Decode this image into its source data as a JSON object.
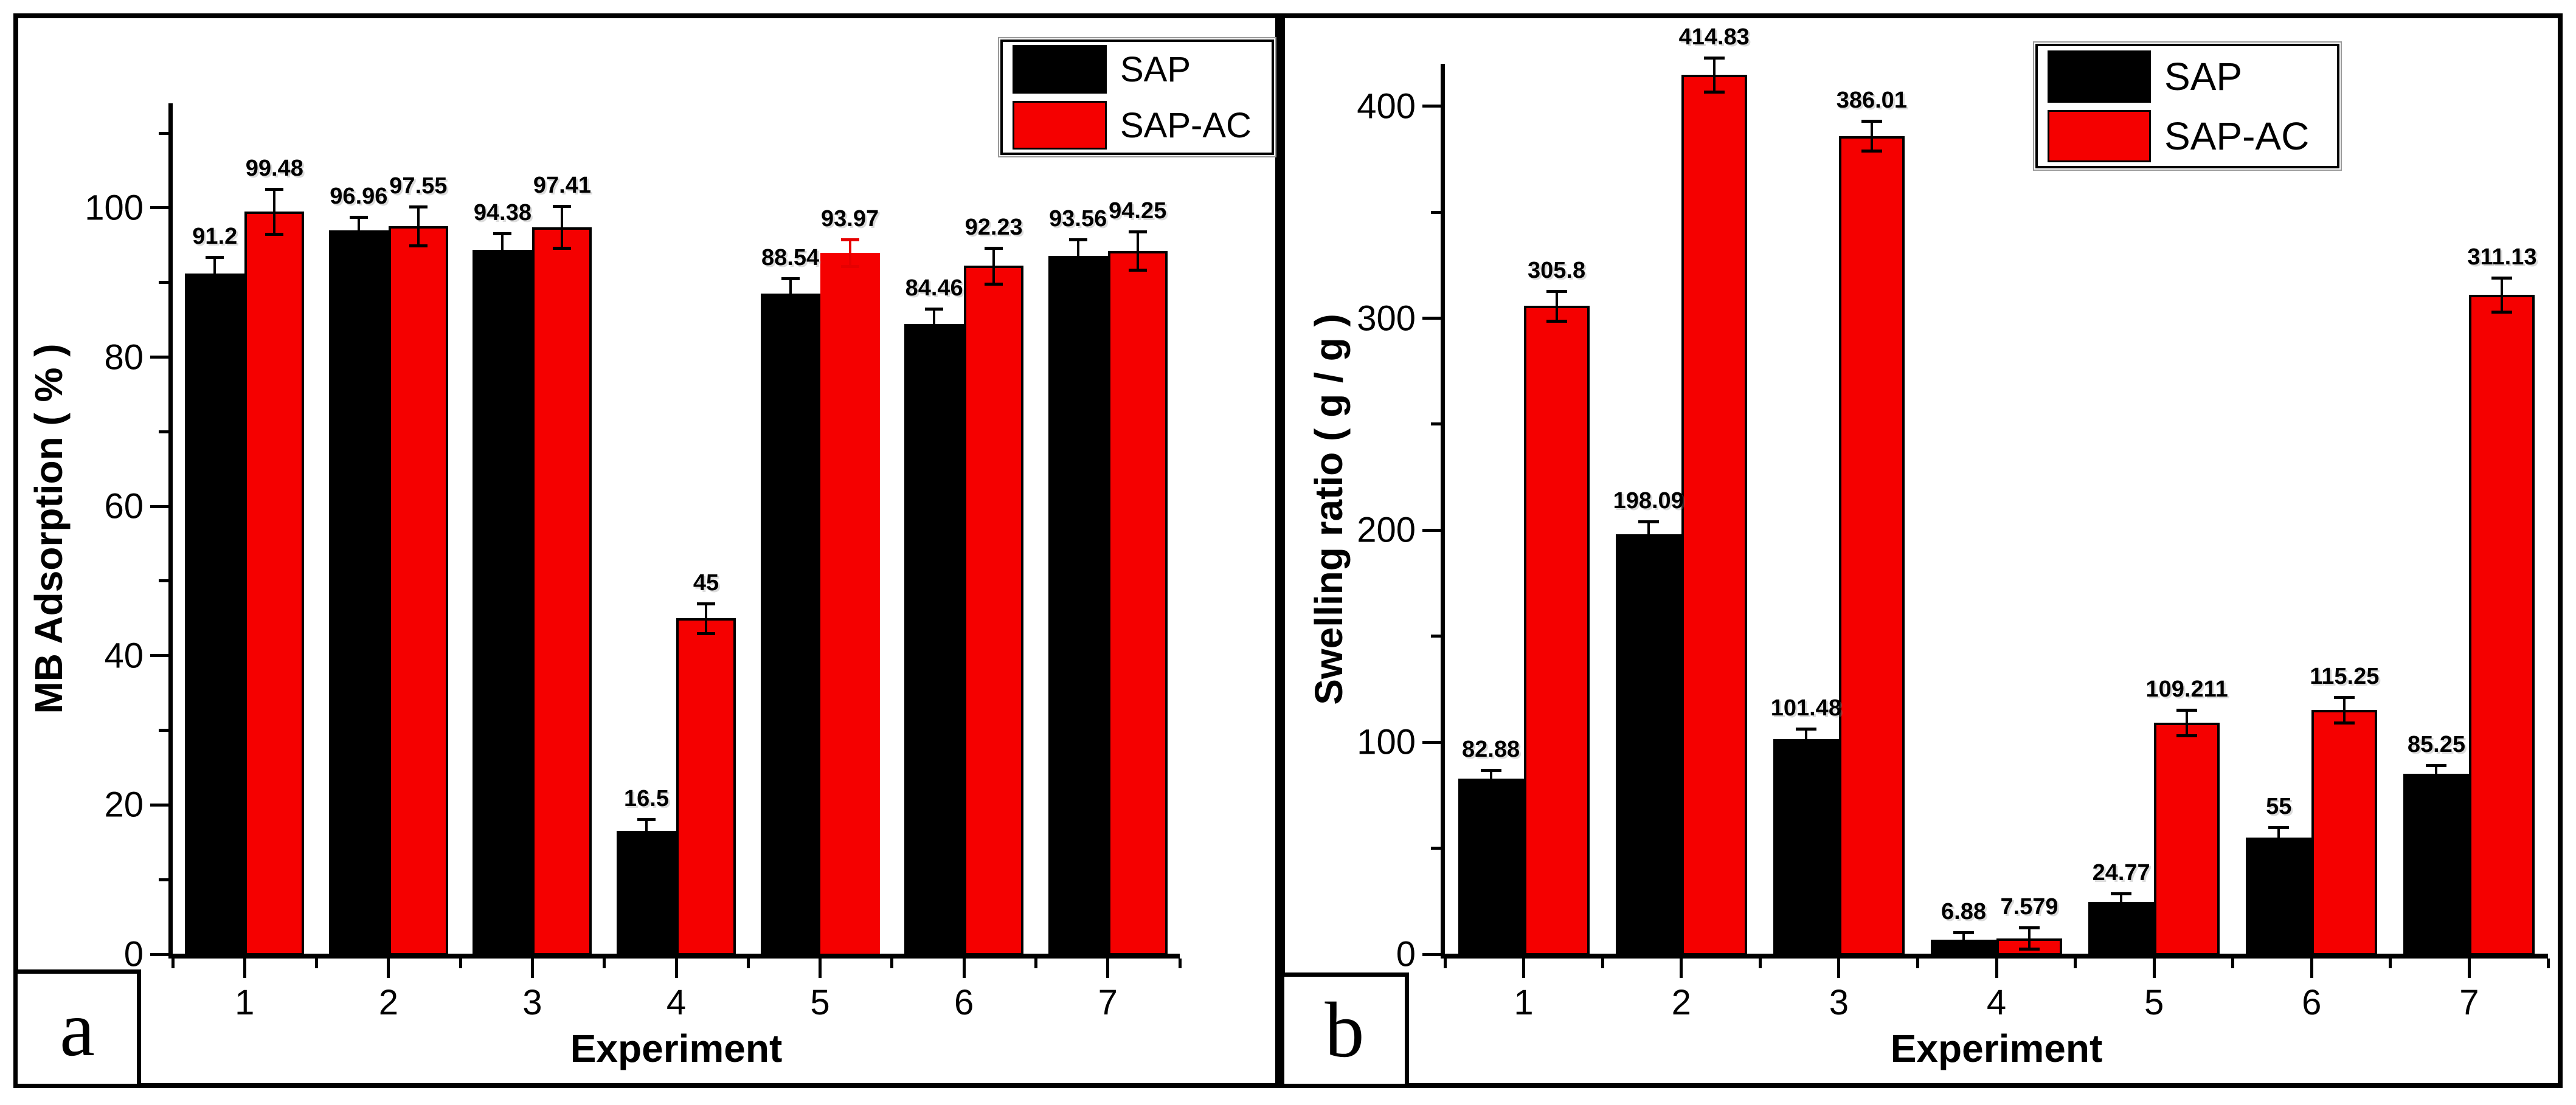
{
  "figure": {
    "background": "#ffffff",
    "border_color": "#000000",
    "series_colors": {
      "SAP": "#000000",
      "SAP-AC": "#f50000"
    }
  },
  "chart_data": [
    {
      "id": "a",
      "type": "bar",
      "panel_label": "a",
      "title": "",
      "xlabel": "Experiment",
      "ylabel": "MB Adsorption ( % )",
      "categories": [
        "1",
        "2",
        "3",
        "4",
        "5",
        "6",
        "7"
      ],
      "ylim": [
        0,
        114
      ],
      "yticks": [
        0,
        20,
        40,
        60,
        80,
        100
      ],
      "minor_tick_step": 10,
      "grid": false,
      "legend": {
        "position": "top-right",
        "entries": [
          "SAP",
          "SAP-AC"
        ]
      },
      "series": [
        {
          "name": "SAP",
          "color": "#000000",
          "outline": "#000000",
          "values": [
            91.2,
            96.96,
            94.38,
            16.5,
            88.54,
            84.46,
            93.56
          ],
          "value_labels": [
            "91.2",
            "96.96",
            "94.38",
            "16.5",
            "88.54",
            "84.46",
            "93.56"
          ],
          "errors": [
            2.2,
            1.8,
            2.2,
            1.6,
            2.0,
            2.0,
            2.2
          ],
          "error_colors": [
            null,
            null,
            null,
            null,
            null,
            null,
            null
          ]
        },
        {
          "name": "SAP-AC",
          "color": "#f50000",
          "outline": "#000000",
          "values": [
            99.48,
            97.55,
            97.41,
            45,
            93.97,
            92.23,
            94.25
          ],
          "value_labels": [
            "99.48",
            "97.55",
            "97.41",
            "45",
            "93.97",
            "92.23",
            "94.25"
          ],
          "errors": [
            3.0,
            2.6,
            2.8,
            2.0,
            1.8,
            2.4,
            2.6
          ],
          "error_colors": [
            null,
            null,
            null,
            null,
            "#e60000",
            null,
            null
          ],
          "bar_outline_colors": [
            null,
            null,
            null,
            null,
            "#f50000",
            null,
            null
          ]
        }
      ]
    },
    {
      "id": "b",
      "type": "bar",
      "panel_label": "b",
      "title": "",
      "xlabel": "Experiment",
      "ylabel": "Swelling ratio ( g / g )",
      "categories": [
        "1",
        "2",
        "3",
        "4",
        "5",
        "6",
        "7"
      ],
      "ylim": [
        0,
        420
      ],
      "yticks": [
        0,
        100,
        200,
        300,
        400
      ],
      "minor_tick_step": 50,
      "grid": false,
      "legend": {
        "position": "top-right",
        "entries": [
          "SAP",
          "SAP-AC"
        ]
      },
      "series": [
        {
          "name": "SAP",
          "color": "#000000",
          "outline": "#000000",
          "values": [
            82.88,
            198.09,
            101.48,
            6.88,
            24.77,
            55,
            85.25
          ],
          "value_labels": [
            "82.88",
            "198.09",
            "101.48",
            "6.88",
            "24.77",
            "55",
            "85.25"
          ],
          "errors": [
            4,
            6,
            5,
            3.5,
            4,
            5,
            4
          ],
          "error_colors": [
            null,
            null,
            null,
            null,
            null,
            null,
            null
          ]
        },
        {
          "name": "SAP-AC",
          "color": "#f50000",
          "outline": "#000000",
          "values": [
            305.8,
            414.83,
            386.01,
            7.579,
            109.211,
            115.25,
            311.13
          ],
          "value_labels": [
            "305.8",
            "414.83",
            "386.01",
            "7.579",
            "109.211",
            "115.25",
            "311.13"
          ],
          "errors": [
            7,
            8,
            7,
            5,
            6,
            6,
            8
          ],
          "error_colors": [
            null,
            null,
            null,
            null,
            null,
            null,
            null
          ]
        }
      ]
    }
  ]
}
